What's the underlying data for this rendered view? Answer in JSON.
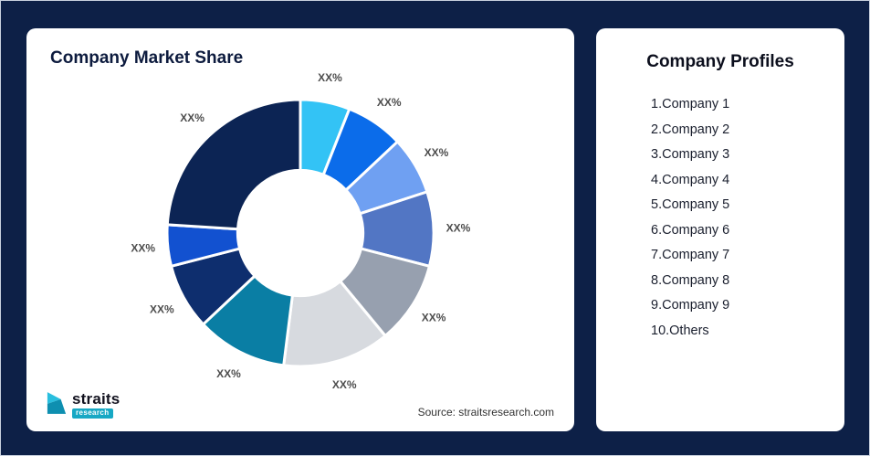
{
  "market_card": {
    "title": "Company Market Share",
    "source_note": "Source: straitsresearch.com",
    "logo": {
      "brand": "straits",
      "sub": "research"
    }
  },
  "profiles_card": {
    "title": "Company Profiles",
    "items": [
      "1.Company 1",
      "2.Company 2",
      "3.Company 3",
      "4.Company 4",
      "5.Company 5",
      "6.Company 6",
      "7.Company 7",
      "8.Company 8",
      "9.Company 9",
      "10.Others"
    ]
  },
  "chart_data": {
    "type": "pie",
    "title": "Company Market Share",
    "donut": true,
    "inner_radius_ratio": 0.47,
    "legend_position": "none",
    "start_angle_deg": -90,
    "direction": "clockwise",
    "segments": [
      {
        "name": "Company 1",
        "label": "XX%",
        "value": 6,
        "color": "#33C3F5"
      },
      {
        "name": "Company 2",
        "label": "XX%",
        "value": 7,
        "color": "#0B6CEA"
      },
      {
        "name": "Company 3",
        "label": "XX%",
        "value": 7,
        "color": "#6FA0F2"
      },
      {
        "name": "Company 4",
        "label": "XX%",
        "value": 9,
        "color": "#5276C4"
      },
      {
        "name": "Company 5",
        "label": "XX%",
        "value": 10,
        "color": "#97A0AF"
      },
      {
        "name": "Company 6",
        "label": "XX%",
        "value": 13,
        "color": "#D7DADF"
      },
      {
        "name": "Company 7",
        "label": "XX%",
        "value": 11,
        "color": "#0A7EA4"
      },
      {
        "name": "Company 8",
        "label": "XX%",
        "value": 8,
        "color": "#0E2E6E"
      },
      {
        "name": "Company 9",
        "label": "XX%",
        "value": 5,
        "color": "#1251D0"
      },
      {
        "name": "Others",
        "label": "XX%",
        "value": 24,
        "color": "#0C2454"
      }
    ]
  }
}
